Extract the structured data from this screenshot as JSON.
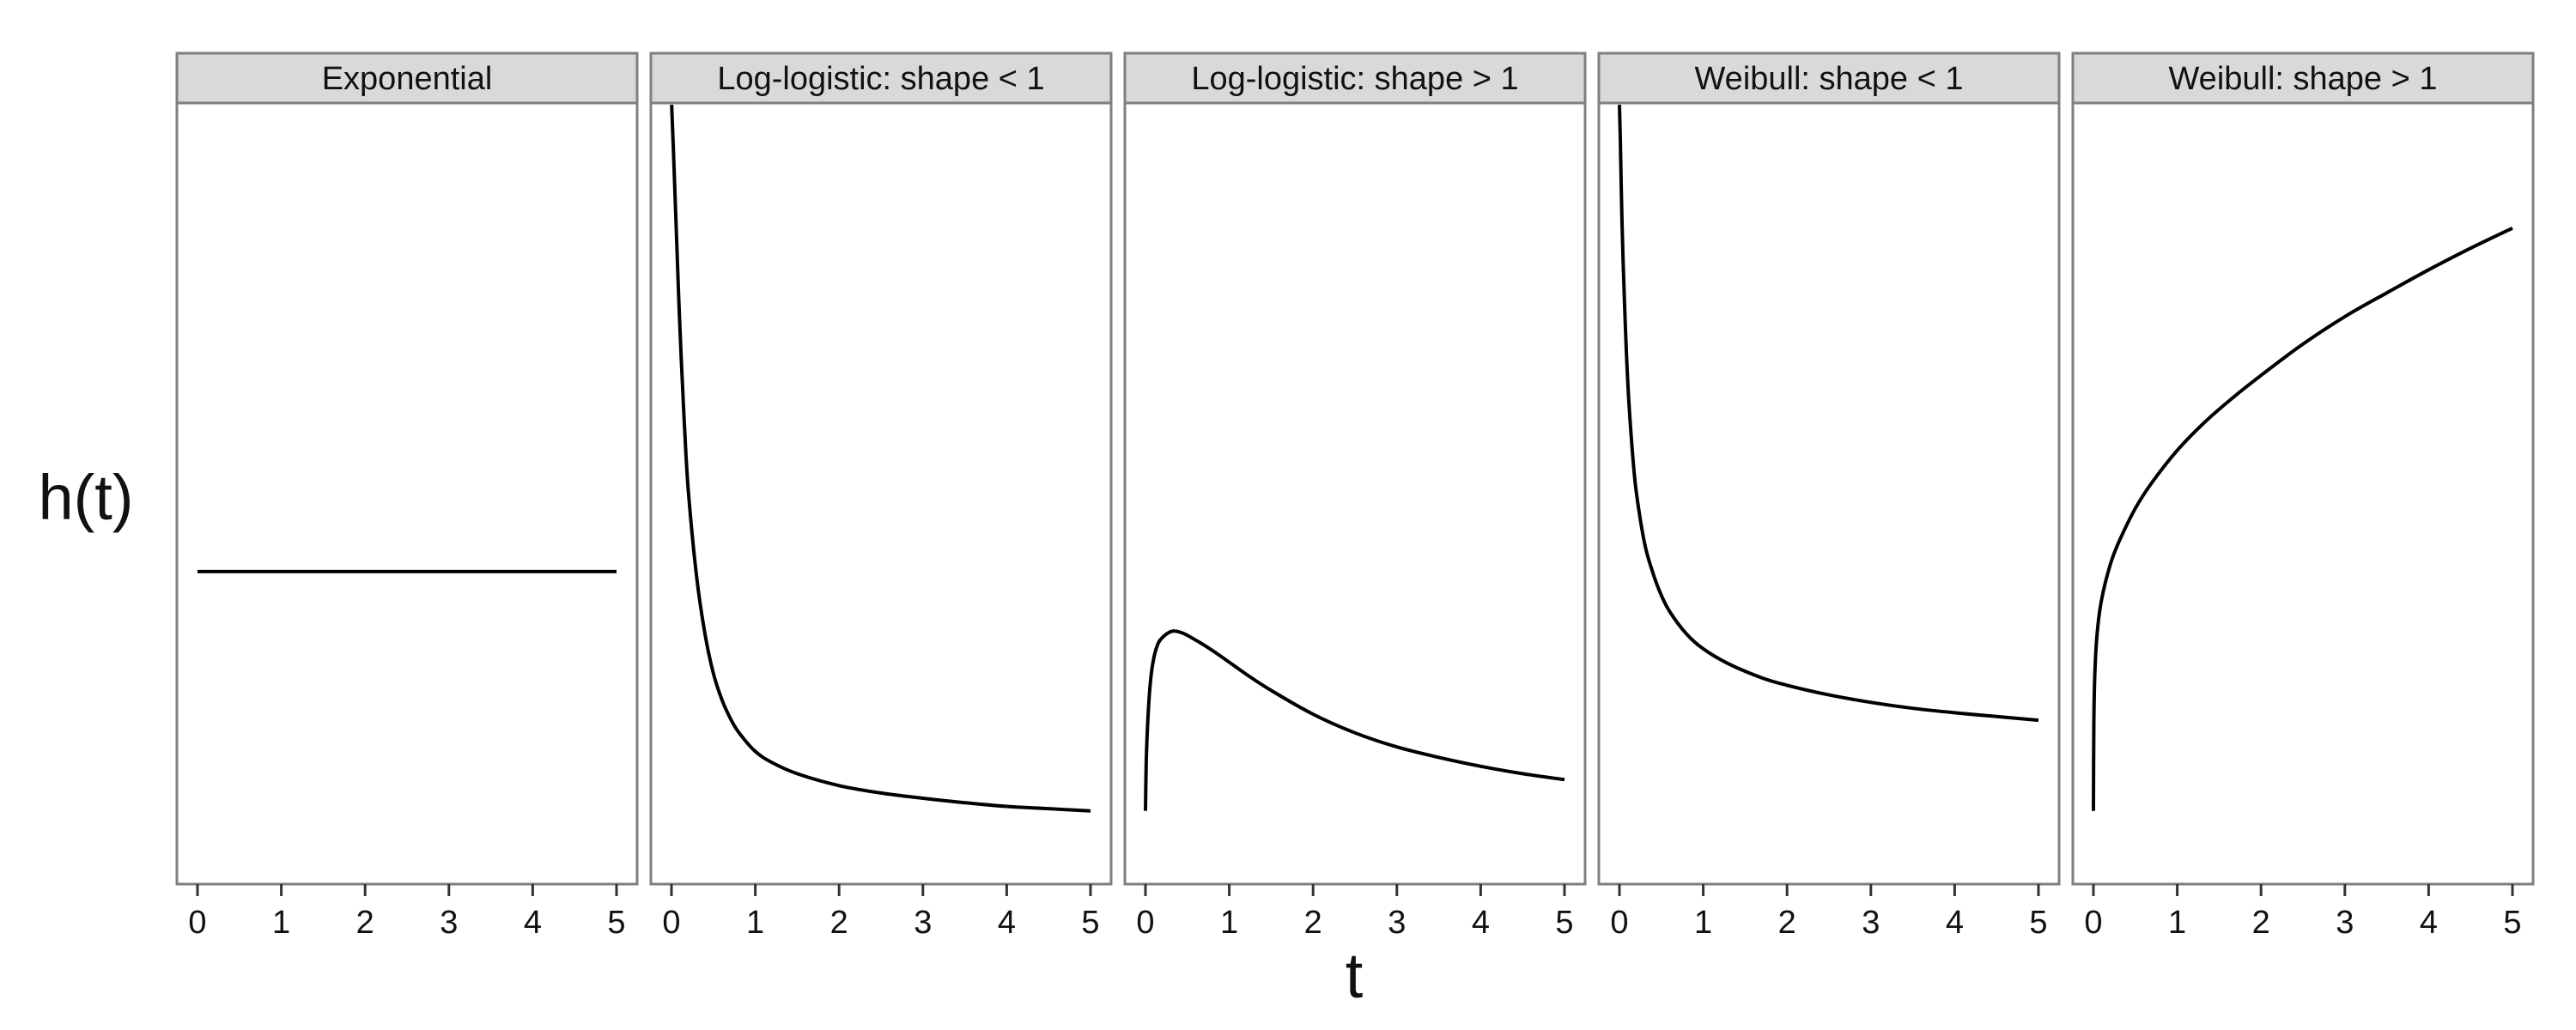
{
  "chart_data": {
    "type": "line",
    "layout": "facet_row",
    "xlabel": "t",
    "ylabel": "h(t)",
    "xlim": [
      0,
      5
    ],
    "x_ticks": [
      0,
      1,
      2,
      3,
      4,
      5
    ],
    "y_ticks_shown": false,
    "ylim": [
      0,
      1
    ],
    "grid": false,
    "legend": "none",
    "line_color": "#000000",
    "strip_fill": "#d9d9d9",
    "border_color": "#7f7f7f",
    "panels": [
      {
        "title": "Exponential",
        "x": [
          0,
          1,
          2,
          3,
          4,
          5
        ],
        "y": [
          0.372,
          0.372,
          0.372,
          0.372,
          0.372,
          0.372
        ]
      },
      {
        "title": "Log-logistic: shape < 1",
        "x": [
          0.002,
          0.03,
          0.06,
          0.1,
          0.15,
          0.2,
          0.3,
          0.4,
          0.5,
          0.6,
          0.7,
          0.8,
          1.0,
          1.2,
          1.5,
          2.0,
          2.5,
          3.0,
          3.5,
          4.0,
          4.5,
          5.0
        ],
        "y": [
          1.0,
          0.918,
          0.822,
          0.701,
          0.58,
          0.482,
          0.365,
          0.288,
          0.235,
          0.2,
          0.175,
          0.156,
          0.13,
          0.115,
          0.1,
          0.084,
          0.074,
          0.067,
          0.061,
          0.056,
          0.053,
          0.05
        ]
      },
      {
        "title": "Log-logistic: shape > 1",
        "x": [
          0.0,
          0.01,
          0.03,
          0.06,
          0.1,
          0.15,
          0.2,
          0.28,
          0.35,
          0.45,
          0.55,
          0.7,
          0.9,
          1.2,
          1.5,
          2.0,
          2.5,
          3.0,
          3.5,
          4.0,
          4.5,
          5.0
        ],
        "y": [
          0.05,
          0.12,
          0.175,
          0.225,
          0.256,
          0.275,
          0.283,
          0.29,
          0.292,
          0.289,
          0.283,
          0.273,
          0.258,
          0.234,
          0.212,
          0.18,
          0.155,
          0.136,
          0.122,
          0.11,
          0.1,
          0.092
        ]
      },
      {
        "title": "Weibull: shape < 1",
        "x": [
          0.0,
          0.01,
          0.03,
          0.06,
          0.1,
          0.15,
          0.2,
          0.3,
          0.4,
          0.5,
          0.6,
          0.8,
          1.0,
          1.3,
          1.7,
          2.0,
          2.5,
          3.0,
          3.5,
          4.0,
          4.5,
          5.0
        ],
        "y": [
          1.0,
          0.955,
          0.846,
          0.734,
          0.625,
          0.54,
          0.48,
          0.41,
          0.37,
          0.34,
          0.318,
          0.288,
          0.268,
          0.248,
          0.229,
          0.219,
          0.206,
          0.196,
          0.188,
          0.182,
          0.177,
          0.172
        ]
      },
      {
        "title": "Weibull: shape > 1",
        "x": [
          0.0,
          0.005,
          0.02,
          0.05,
          0.1,
          0.2,
          0.3,
          0.5,
          0.7,
          1.0,
          1.3,
          1.6,
          2.0,
          2.5,
          3.0,
          3.5,
          4.0,
          4.5,
          5.0
        ],
        "y": [
          0.05,
          0.17,
          0.245,
          0.296,
          0.336,
          0.381,
          0.411,
          0.457,
          0.492,
          0.535,
          0.57,
          0.6,
          0.636,
          0.678,
          0.715,
          0.747,
          0.778,
          0.807,
          0.834
        ]
      }
    ]
  }
}
